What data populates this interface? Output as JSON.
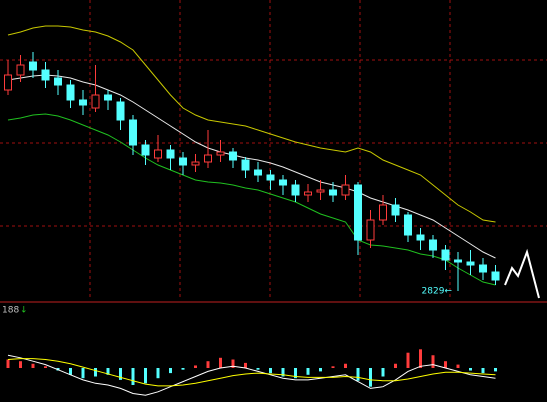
{
  "chart_data": [
    {
      "type": "candlestick",
      "ylim": [
        2820,
        3120
      ],
      "yticks": [
        3060,
        2977,
        2894
      ],
      "grid": true,
      "up_color": "#ff3c3c",
      "down_color": "#54ffff",
      "open": [
        3030,
        3045,
        3058,
        3050,
        3042,
        3035,
        3020,
        3012,
        3025,
        3018,
        3000,
        2975,
        2962,
        2970,
        2962,
        2955,
        2958,
        2965,
        2968,
        2960,
        2950,
        2945,
        2940,
        2935,
        2925,
        2928,
        2930,
        2925,
        2935,
        2880,
        2900,
        2915,
        2905,
        2885,
        2880,
        2870,
        2860,
        2858,
        2855,
        2848
      ],
      "high": [
        3060,
        3065,
        3068,
        3058,
        3050,
        3040,
        3030,
        3055,
        3030,
        3022,
        3005,
        2980,
        2985,
        2975,
        2968,
        2966,
        2990,
        2980,
        2972,
        2963,
        2958,
        2950,
        2945,
        2940,
        2936,
        2940,
        2938,
        2945,
        2938,
        2910,
        2925,
        2922,
        2908,
        2892,
        2885,
        2875,
        2868,
        2870,
        2862,
        2855
      ],
      "low": [
        3025,
        3038,
        3042,
        3032,
        3025,
        3012,
        3005,
        3008,
        3010,
        2990,
        2965,
        2955,
        2958,
        2950,
        2945,
        2948,
        2952,
        2958,
        2952,
        2942,
        2938,
        2930,
        2925,
        2918,
        2918,
        2920,
        2918,
        2920,
        2865,
        2872,
        2895,
        2898,
        2878,
        2870,
        2862,
        2850,
        2829,
        2845,
        2840,
        2835
      ],
      "close": [
        3045,
        3055,
        3050,
        3040,
        3035,
        3020,
        3015,
        3025,
        3020,
        3000,
        2975,
        2965,
        2970,
        2962,
        2955,
        2958,
        2965,
        2968,
        2960,
        2950,
        2945,
        2940,
        2935,
        2925,
        2928,
        2930,
        2925,
        2935,
        2880,
        2900,
        2915,
        2905,
        2885,
        2880,
        2870,
        2860,
        2858,
        2855,
        2848,
        2840
      ],
      "series": [
        {
          "color": "#c8c800",
          "values": [
            3085,
            3088,
            3092,
            3094,
            3094,
            3093,
            3090,
            3088,
            3084,
            3078,
            3070,
            3055,
            3040,
            3025,
            3012,
            3005,
            3000,
            2998,
            2996,
            2994,
            2990,
            2986,
            2982,
            2978,
            2975,
            2972,
            2970,
            2968,
            2972,
            2968,
            2960,
            2955,
            2950,
            2945,
            2935,
            2925,
            2915,
            2908,
            2900,
            2898
          ]
        },
        {
          "color": "#e8e8e8",
          "values": [
            3040,
            3042,
            3044,
            3045,
            3044,
            3042,
            3038,
            3035,
            3030,
            3025,
            3018,
            3010,
            3002,
            2994,
            2986,
            2978,
            2972,
            2968,
            2965,
            2962,
            2960,
            2957,
            2953,
            2948,
            2943,
            2938,
            2935,
            2932,
            2928,
            2922,
            2918,
            2914,
            2910,
            2905,
            2900,
            2892,
            2884,
            2876,
            2868,
            2862
          ]
        },
        {
          "color": "#20c020",
          "values": [
            3000,
            3002,
            3005,
            3006,
            3004,
            3000,
            2995,
            2990,
            2985,
            2978,
            2970,
            2962,
            2955,
            2950,
            2945,
            2940,
            2938,
            2937,
            2935,
            2932,
            2930,
            2926,
            2922,
            2918,
            2912,
            2906,
            2902,
            2898,
            2880,
            2875,
            2874,
            2872,
            2870,
            2866,
            2864,
            2860,
            2852,
            2845,
            2838,
            2835
          ]
        }
      ],
      "low_marker": {
        "value": 2829,
        "label": "2829←"
      }
    },
    {
      "type": "macd",
      "label": "188",
      "ylim": [
        -40,
        40
      ],
      "up_color": "#ff3c3c",
      "down_color": "#54ffff",
      "hist": [
        10,
        8,
        5,
        2,
        -3,
        -8,
        -12,
        -10,
        -8,
        -14,
        -20,
        -18,
        -12,
        -6,
        -2,
        3,
        8,
        12,
        10,
        6,
        -2,
        -6,
        -10,
        -12,
        -8,
        -4,
        2,
        5,
        -15,
        -22,
        -10,
        5,
        18,
        22,
        15,
        8,
        4,
        -3,
        -6,
        -4
      ],
      "series": [
        {
          "color": "#ffffff",
          "values": [
            15,
            12,
            8,
            4,
            -2,
            -8,
            -14,
            -18,
            -20,
            -24,
            -30,
            -32,
            -28,
            -22,
            -16,
            -10,
            -4,
            0,
            2,
            0,
            -4,
            -8,
            -12,
            -14,
            -14,
            -12,
            -10,
            -8,
            -16,
            -24,
            -22,
            -14,
            -4,
            2,
            4,
            0,
            -4,
            -8,
            -10,
            -12
          ]
        },
        {
          "color": "#ffff00",
          "values": [
            10,
            11,
            11,
            10,
            8,
            5,
            1,
            -3,
            -7,
            -11,
            -15,
            -19,
            -21,
            -21,
            -20,
            -18,
            -15,
            -12,
            -9,
            -7,
            -6,
            -7,
            -8,
            -10,
            -11,
            -11,
            -11,
            -10,
            -11,
            -14,
            -15,
            -15,
            -13,
            -10,
            -7,
            -5,
            -5,
            -6,
            -7,
            -8
          ]
        }
      ]
    }
  ]
}
